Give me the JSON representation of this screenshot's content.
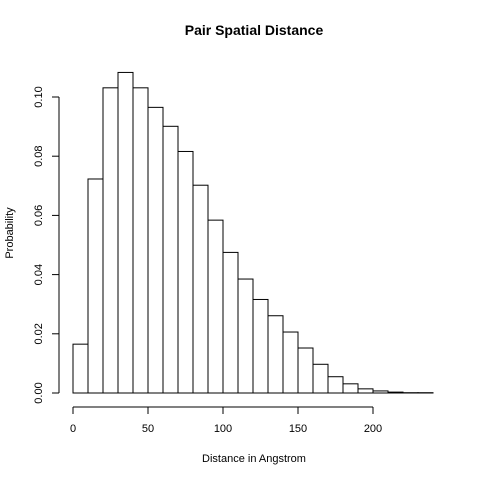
{
  "chart_data": {
    "type": "bar",
    "title": "Pair Spatial Distance",
    "xlabel": "Distance in Angstrom",
    "ylabel": "Probability",
    "xlim": [
      0,
      240
    ],
    "ylim": [
      0,
      0.11
    ],
    "bin_width": 10,
    "bins": [
      {
        "start": 0,
        "end": 10,
        "value": 0.0165
      },
      {
        "start": 10,
        "end": 20,
        "value": 0.0723
      },
      {
        "start": 20,
        "end": 30,
        "value": 0.1031
      },
      {
        "start": 30,
        "end": 40,
        "value": 0.1083
      },
      {
        "start": 40,
        "end": 50,
        "value": 0.1031
      },
      {
        "start": 50,
        "end": 60,
        "value": 0.0965
      },
      {
        "start": 60,
        "end": 70,
        "value": 0.0901
      },
      {
        "start": 70,
        "end": 80,
        "value": 0.0816
      },
      {
        "start": 80,
        "end": 90,
        "value": 0.0702
      },
      {
        "start": 90,
        "end": 100,
        "value": 0.0584
      },
      {
        "start": 100,
        "end": 110,
        "value": 0.0475
      },
      {
        "start": 110,
        "end": 120,
        "value": 0.0385
      },
      {
        "start": 120,
        "end": 130,
        "value": 0.0316
      },
      {
        "start": 130,
        "end": 140,
        "value": 0.0261
      },
      {
        "start": 140,
        "end": 150,
        "value": 0.0206
      },
      {
        "start": 150,
        "end": 160,
        "value": 0.0152
      },
      {
        "start": 160,
        "end": 170,
        "value": 0.0097
      },
      {
        "start": 170,
        "end": 180,
        "value": 0.0055
      },
      {
        "start": 180,
        "end": 190,
        "value": 0.0031
      },
      {
        "start": 190,
        "end": 200,
        "value": 0.0014
      },
      {
        "start": 200,
        "end": 210,
        "value": 0.0007
      },
      {
        "start": 210,
        "end": 220,
        "value": 0.0003
      },
      {
        "start": 220,
        "end": 230,
        "value": 0.0001
      },
      {
        "start": 230,
        "end": 240,
        "value": 0.0001
      }
    ],
    "x_ticks": [
      0,
      50,
      100,
      150,
      200
    ],
    "x_tick_labels": [
      "0",
      "50",
      "100",
      "150",
      "200"
    ],
    "y_ticks": [
      0,
      0.02,
      0.04,
      0.06,
      0.08,
      0.1
    ],
    "y_tick_labels": [
      "0.00",
      "0.02",
      "0.04",
      "0.06",
      "0.08",
      "0.10"
    ],
    "grid": false,
    "bar_fill": "#ffffff",
    "bar_stroke": "#000000"
  }
}
